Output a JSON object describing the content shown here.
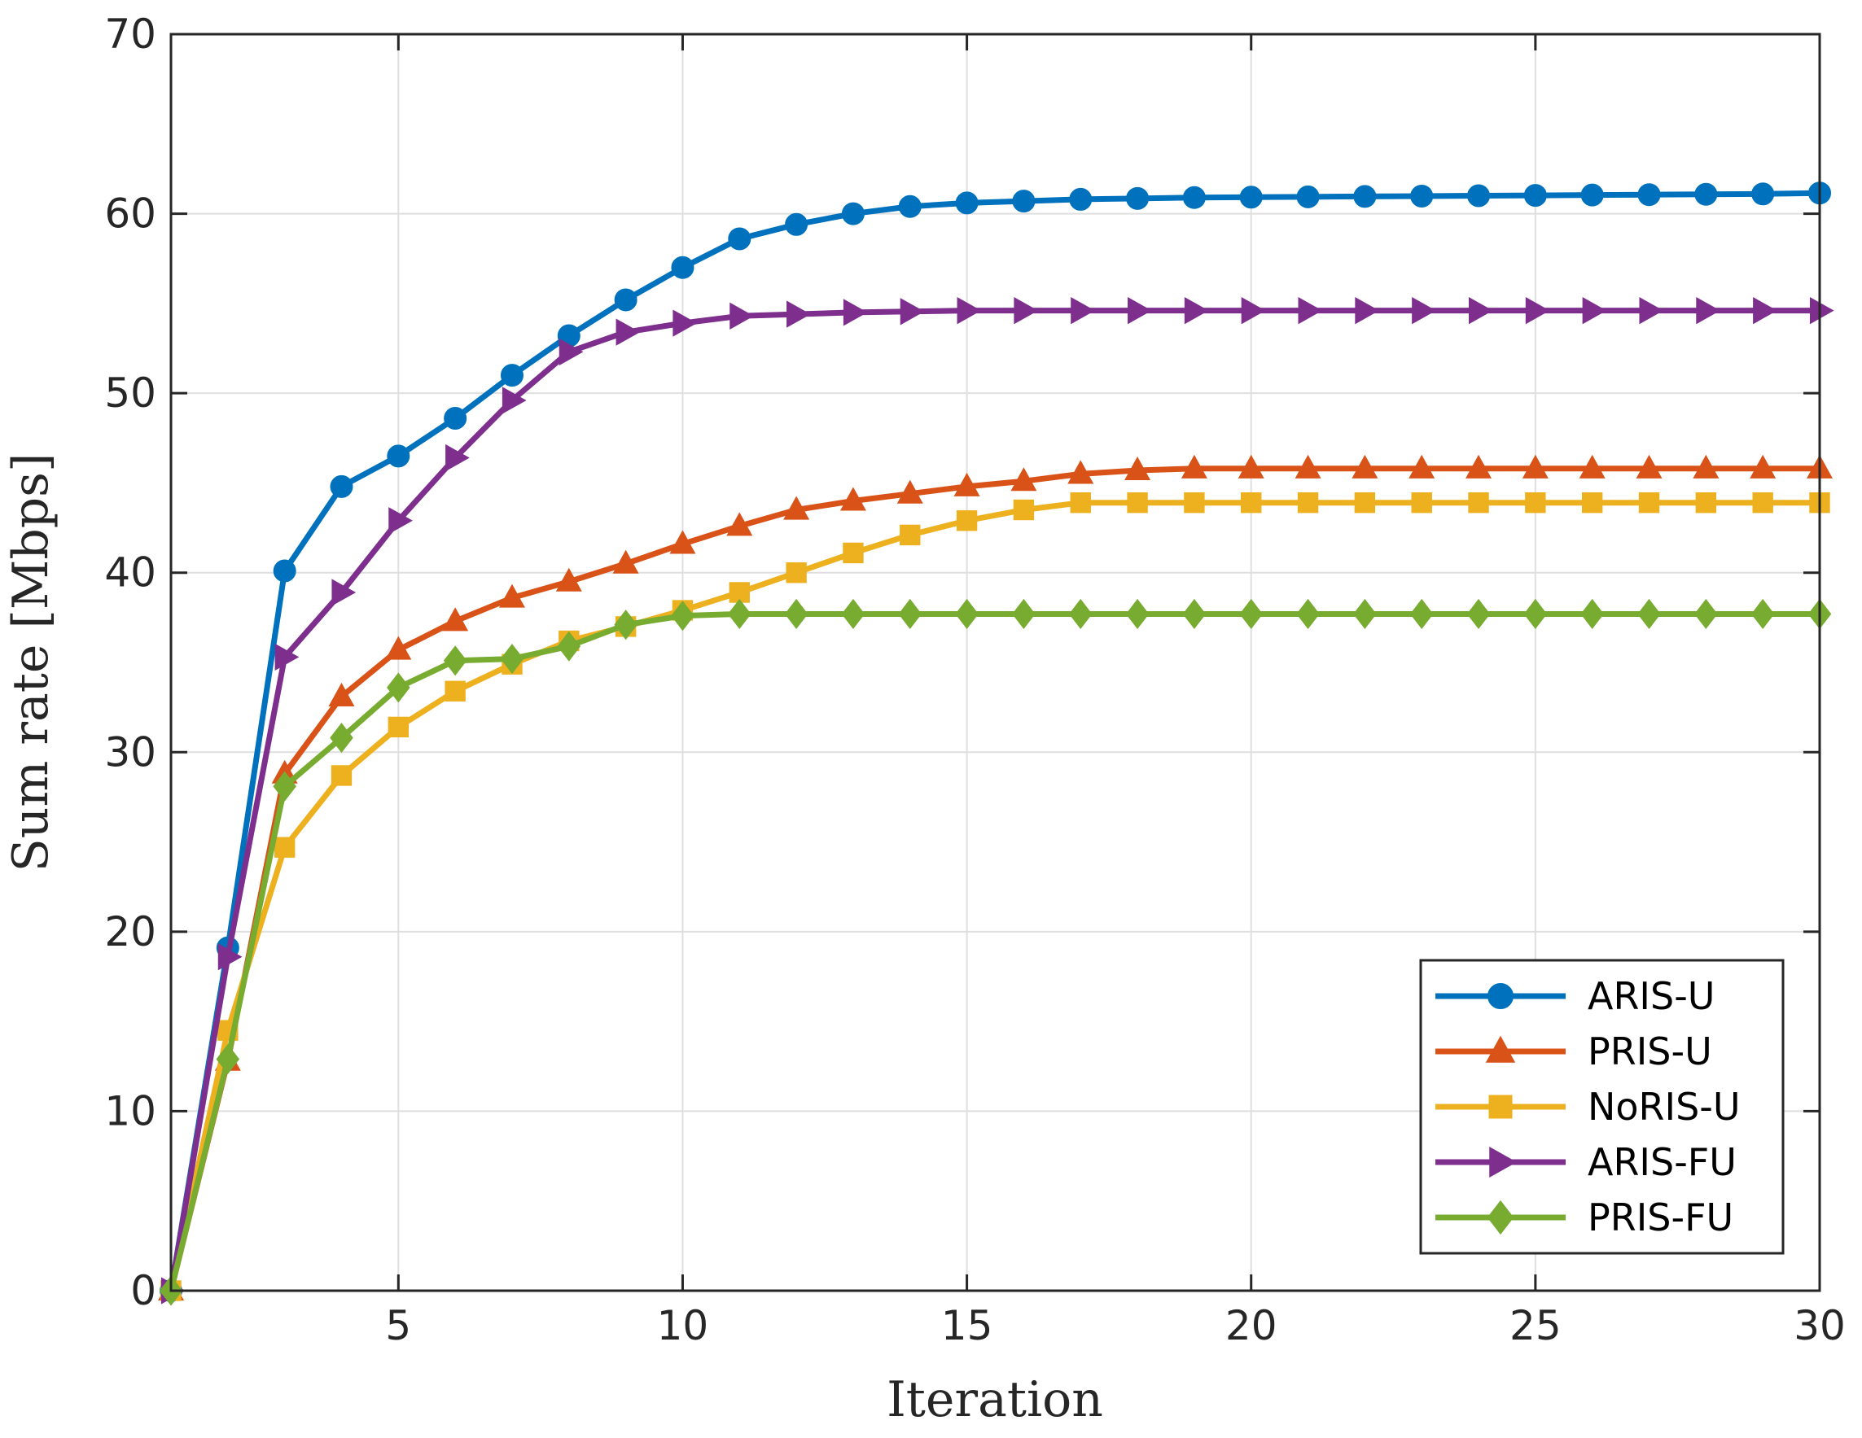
{
  "chart_data": {
    "type": "line",
    "title": "",
    "xlabel": "Iteration",
    "ylabel": "Sum rate [Mbps]",
    "xlim": [
      1,
      30
    ],
    "ylim": [
      0,
      70
    ],
    "xticks": [
      5,
      10,
      15,
      20,
      25,
      30
    ],
    "yticks": [
      0,
      10,
      20,
      30,
      40,
      50,
      60,
      70
    ],
    "grid": true,
    "legend_position": "bottom-right",
    "x": [
      1,
      2,
      3,
      4,
      5,
      6,
      7,
      8,
      9,
      10,
      11,
      12,
      13,
      14,
      15,
      16,
      17,
      18,
      19,
      20,
      21,
      22,
      23,
      24,
      25,
      26,
      27,
      28,
      29,
      30
    ],
    "series": [
      {
        "name": "ARIS-U",
        "color": "#0072BD",
        "marker": "circle",
        "values": [
          0,
          19.1,
          40.1,
          44.8,
          46.5,
          48.6,
          51.0,
          53.2,
          55.2,
          57.0,
          58.6,
          59.4,
          60.0,
          60.4,
          60.6,
          60.7,
          60.8,
          60.85,
          60.9,
          60.92,
          60.94,
          60.96,
          60.98,
          61.0,
          61.02,
          61.04,
          61.06,
          61.08,
          61.1,
          61.15
        ]
      },
      {
        "name": "PRIS-U",
        "color": "#D95319",
        "marker": "triangle-up",
        "values": [
          0,
          12.8,
          28.8,
          33.1,
          35.7,
          37.3,
          38.6,
          39.5,
          40.5,
          41.6,
          42.6,
          43.5,
          44.0,
          44.4,
          44.8,
          45.1,
          45.5,
          45.7,
          45.8,
          45.8,
          45.8,
          45.8,
          45.8,
          45.8,
          45.8,
          45.8,
          45.8,
          45.8,
          45.8,
          45.8
        ]
      },
      {
        "name": "NoRIS-U",
        "color": "#EDB120",
        "marker": "square",
        "values": [
          0,
          14.5,
          24.7,
          28.7,
          31.4,
          33.4,
          34.9,
          36.2,
          37.0,
          37.9,
          38.9,
          40.0,
          41.1,
          42.1,
          42.9,
          43.5,
          43.9,
          43.9,
          43.9,
          43.9,
          43.9,
          43.9,
          43.9,
          43.9,
          43.9,
          43.9,
          43.9,
          43.9,
          43.9,
          43.9
        ]
      },
      {
        "name": "ARIS-FU",
        "color": "#7E2F8E",
        "marker": "triangle-right",
        "values": [
          0,
          18.6,
          35.3,
          38.9,
          42.9,
          46.4,
          49.6,
          52.3,
          53.4,
          53.9,
          54.3,
          54.4,
          54.5,
          54.55,
          54.6,
          54.6,
          54.6,
          54.6,
          54.6,
          54.6,
          54.6,
          54.6,
          54.6,
          54.6,
          54.6,
          54.6,
          54.6,
          54.6,
          54.6,
          54.6
        ]
      },
      {
        "name": "PRIS-FU",
        "color": "#77AC30",
        "marker": "diamond",
        "values": [
          0,
          12.9,
          28.1,
          30.8,
          33.6,
          35.1,
          35.2,
          35.9,
          37.1,
          37.6,
          37.7,
          37.7,
          37.7,
          37.7,
          37.7,
          37.7,
          37.7,
          37.7,
          37.7,
          37.7,
          37.7,
          37.7,
          37.7,
          37.7,
          37.7,
          37.7,
          37.7,
          37.7,
          37.7,
          37.7
        ]
      }
    ]
  }
}
